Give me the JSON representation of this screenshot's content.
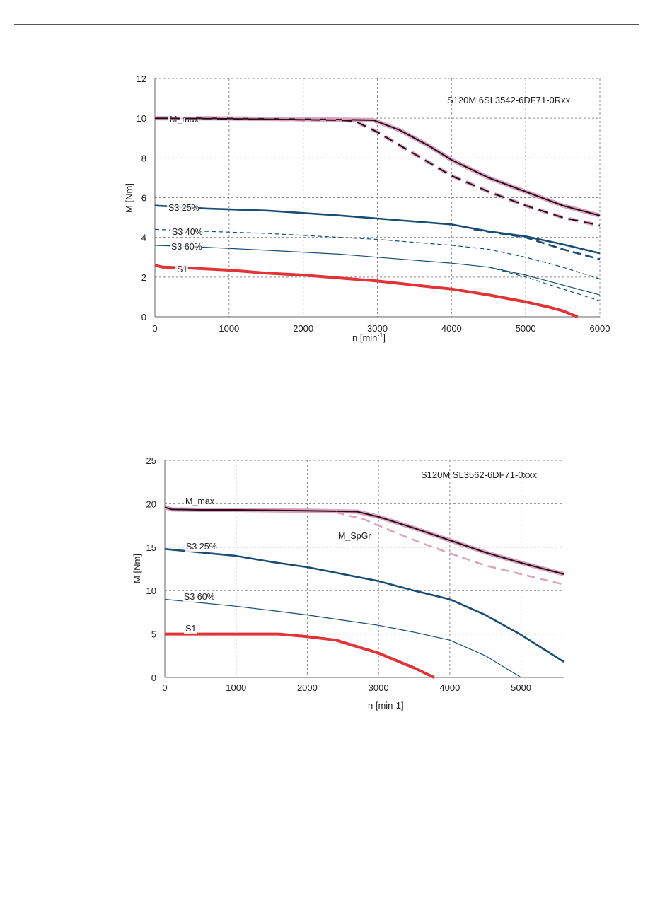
{
  "charts_meta": {
    "color_pink": "#d9a3bb",
    "color_dark": "#2a0e1e",
    "color_blue": "#184e73",
    "color_red": "#e03436"
  },
  "chart_data": [
    {
      "type": "line",
      "title": "S120M 6SL3542-6DF71-0Rxx",
      "xlabel": "n  [min",
      "xlabel_sup": "-1",
      "xlabel_close": "]",
      "ylabel": "M [Nm]",
      "xlim": [
        0,
        6000
      ],
      "ylim": [
        0,
        12
      ],
      "xticks": [
        0,
        1000,
        2000,
        3000,
        4000,
        5000,
        6000
      ],
      "yticks": [
        0,
        2,
        4,
        6,
        8,
        10,
        12
      ],
      "grid": true,
      "series": [
        {
          "name": "M_max",
          "style": "max",
          "x": [
            0,
            200,
            700,
            1500,
            2500,
            2950,
            3300,
            3700,
            4000,
            4500,
            5000,
            5500,
            6000
          ],
          "y": [
            10.0,
            10.0,
            10.0,
            9.97,
            9.93,
            9.9,
            9.4,
            8.6,
            7.9,
            7.0,
            6.3,
            5.6,
            5.1
          ]
        },
        {
          "name": "",
          "style": "dark-dash",
          "x": [
            0,
            700,
            1500,
            2500,
            2700,
            3000,
            3500,
            4000,
            4500,
            5000,
            5500,
            6000
          ],
          "y": [
            10.0,
            9.98,
            9.95,
            9.9,
            9.85,
            9.3,
            8.2,
            7.1,
            6.3,
            5.6,
            5.0,
            4.6
          ]
        },
        {
          "name": "S3 25%",
          "style": "blue-thick",
          "x": [
            0,
            700,
            1500,
            2500,
            3000,
            4000,
            4500,
            5000,
            5500,
            6000
          ],
          "y": [
            5.6,
            5.45,
            5.35,
            5.1,
            4.95,
            4.65,
            4.3,
            4.05,
            3.65,
            3.2
          ]
        },
        {
          "name": "",
          "style": "blue-thick-dash",
          "x": [
            4300,
            5000,
            5500,
            6000
          ],
          "y": [
            4.4,
            4.0,
            3.4,
            2.9
          ]
        },
        {
          "name": "S3 40%",
          "style": "blue-thin-dash",
          "x": [
            0,
            700,
            1500,
            2500,
            3000,
            4000,
            4500,
            5000,
            5500,
            6000
          ],
          "y": [
            4.4,
            4.3,
            4.2,
            4.0,
            3.9,
            3.6,
            3.4,
            3.0,
            2.5,
            1.9
          ]
        },
        {
          "name": "S3 60%",
          "style": "blue-thin",
          "x": [
            0,
            700,
            1500,
            2500,
            3000,
            4000,
            4500,
            5000,
            5500,
            6000
          ],
          "y": [
            3.6,
            3.5,
            3.35,
            3.15,
            3.0,
            2.7,
            2.5,
            2.1,
            1.6,
            1.1
          ]
        },
        {
          "name": "",
          "style": "blue-thin-dash",
          "x": [
            4500,
            5000,
            5500,
            6000
          ],
          "y": [
            2.5,
            2.0,
            1.4,
            0.8
          ]
        },
        {
          "name": "S1",
          "style": "red",
          "x": [
            0,
            100,
            500,
            1000,
            1500,
            2000,
            2500,
            3000,
            3500,
            4000,
            4500,
            5000,
            5300,
            5500,
            5700
          ],
          "y": [
            2.6,
            2.5,
            2.45,
            2.35,
            2.2,
            2.1,
            1.95,
            1.8,
            1.6,
            1.4,
            1.1,
            0.75,
            0.5,
            0.3,
            0.0
          ]
        }
      ]
    },
    {
      "type": "line",
      "title": "S120M SL3562-6DF71-0xxx",
      "xlabel": "n [min-1]",
      "ylabel": "M [Nm]",
      "xlim": [
        0,
        5600
      ],
      "ylim": [
        0,
        25
      ],
      "xticks": [
        0,
        1000,
        2000,
        3000,
        4000,
        5000
      ],
      "yticks": [
        0,
        5,
        10,
        15,
        20,
        25
      ],
      "grid": true,
      "series": [
        {
          "name": "M_max",
          "style": "max",
          "x": [
            0,
            100,
            500,
            1000,
            2000,
            2700,
            3000,
            3500,
            4000,
            4500,
            5000,
            5600
          ],
          "y": [
            19.6,
            19.35,
            19.3,
            19.3,
            19.2,
            19.1,
            18.5,
            17.2,
            15.8,
            14.4,
            13.2,
            11.9
          ]
        },
        {
          "name": "M_SpGr",
          "style": "pink-dash",
          "x": [
            2400,
            2800,
            3200,
            3600,
            4000,
            4500,
            5000,
            5600
          ],
          "y": [
            19.0,
            18.2,
            16.8,
            15.5,
            14.3,
            12.9,
            11.9,
            10.7
          ]
        },
        {
          "name": "S3 25%",
          "style": "blue-thick",
          "x": [
            0,
            500,
            1000,
            1500,
            2000,
            2500,
            3000,
            3500,
            4000,
            4500,
            5000,
            5600
          ],
          "y": [
            14.8,
            14.4,
            14.0,
            13.3,
            12.7,
            11.9,
            11.1,
            10.0,
            9.0,
            7.2,
            4.9,
            1.8
          ]
        },
        {
          "name": "S3 60%",
          "style": "blue-thin",
          "x": [
            0,
            500,
            1000,
            1500,
            2000,
            2500,
            3000,
            3500,
            4000,
            4500,
            5000
          ],
          "y": [
            9.0,
            8.6,
            8.2,
            7.7,
            7.2,
            6.6,
            6.0,
            5.2,
            4.3,
            2.5,
            0.0
          ]
        },
        {
          "name": "S1",
          "style": "red",
          "x": [
            0,
            500,
            1000,
            1600,
            2000,
            2400,
            3000,
            3500,
            3780
          ],
          "y": [
            5.0,
            5.0,
            5.0,
            5.0,
            4.7,
            4.3,
            2.8,
            1.1,
            0.0
          ]
        }
      ]
    }
  ]
}
